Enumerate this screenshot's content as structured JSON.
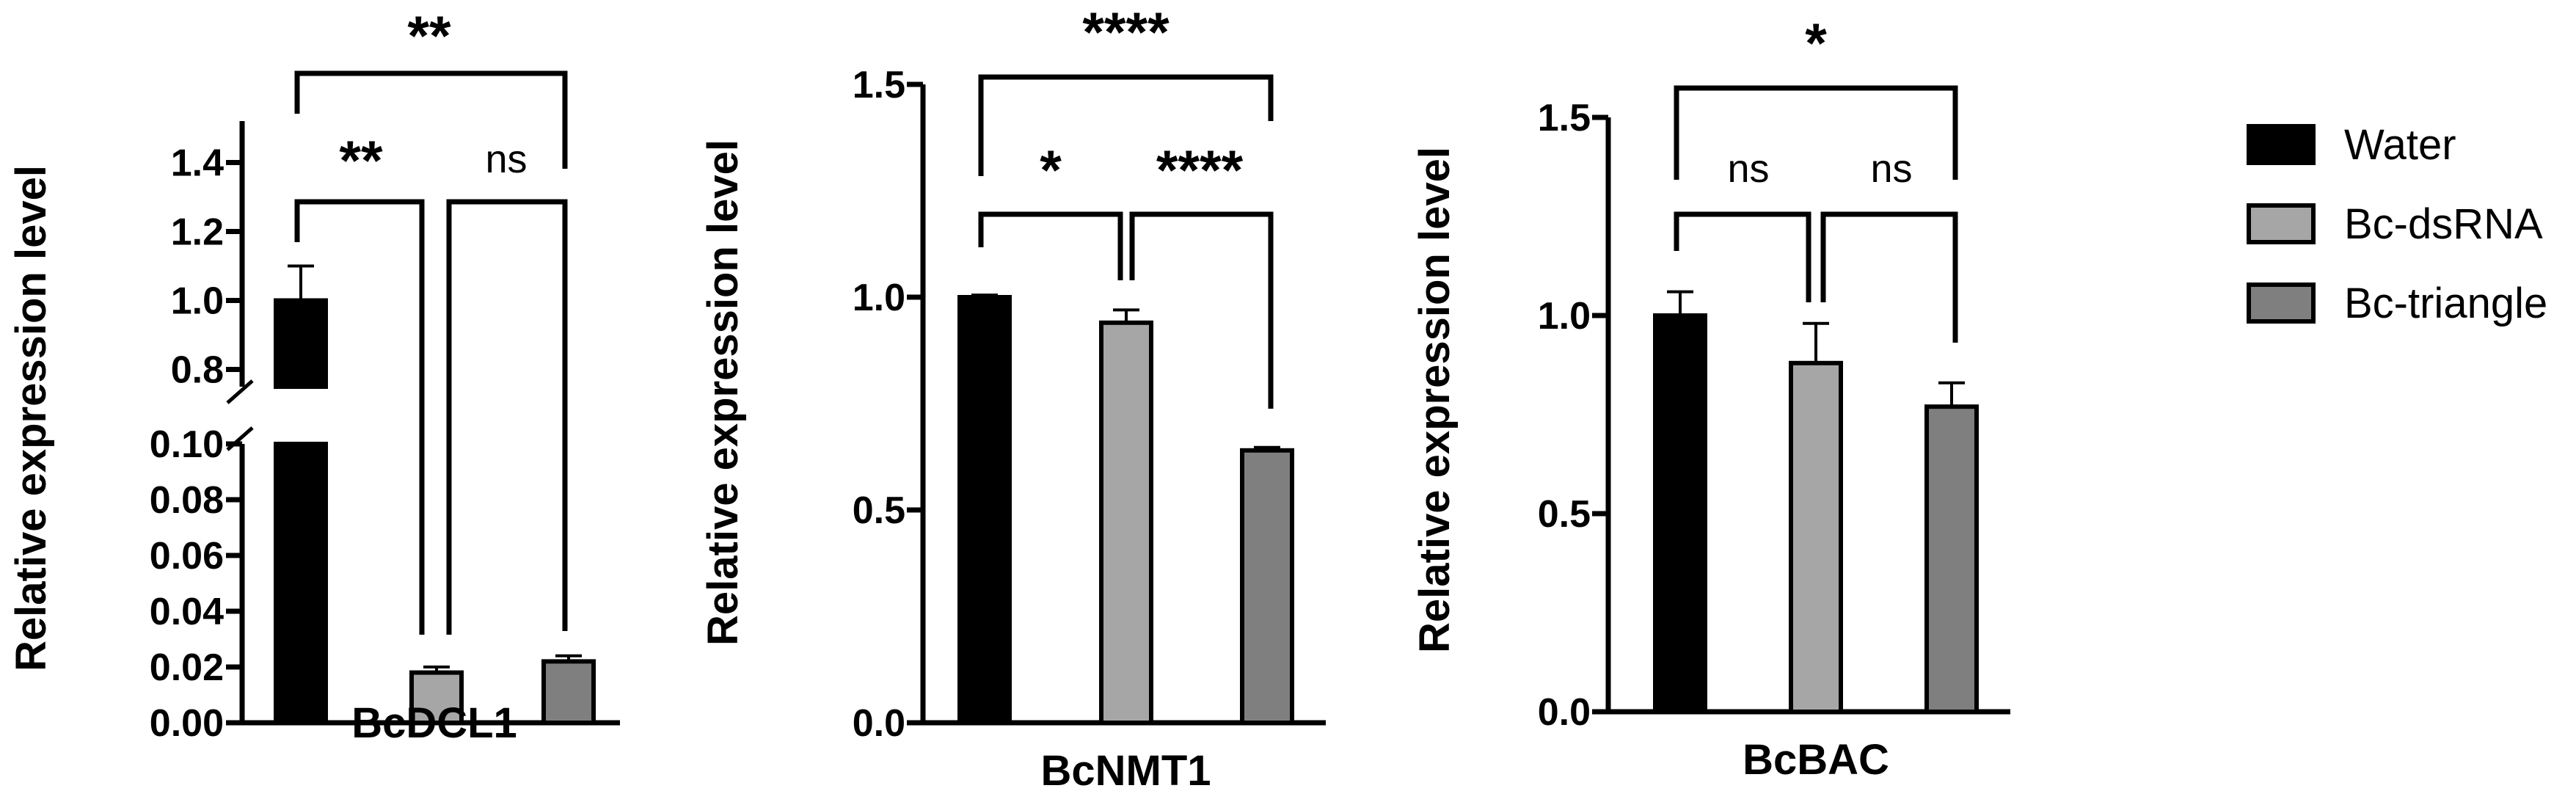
{
  "legend": [
    "Water",
    "Bc-dsRNA",
    "Bc-triangle"
  ],
  "colors": {
    "Water": "#000000",
    "Bc-dsRNA": "#a6a6a6",
    "Bc-triangle": "#7f7f7f"
  },
  "chart_data": [
    {
      "type": "bar",
      "xlabel": "BcDCL1",
      "ylabel": "Relative expression level",
      "categories": [
        "Water",
        "Bc-dsRNA",
        "Bc-triangle"
      ],
      "values": [
        1.0,
        0.018,
        0.022
      ],
      "errors": [
        0.1,
        0.002,
        0.002
      ],
      "axis_break": {
        "lower_range": [
          0.0,
          0.1
        ],
        "upper_range": [
          0.75,
          1.5
        ]
      },
      "yticks_lower": [
        "0.00",
        "0.02",
        "0.04",
        "0.06",
        "0.08",
        "0.10"
      ],
      "yticks_upper": [
        "0.8",
        "1.0",
        "1.2",
        "1.4"
      ],
      "significance": [
        {
          "pair": [
            "Water",
            "Bc-triangle"
          ],
          "label": "**"
        },
        {
          "pair": [
            "Water",
            "Bc-dsRNA"
          ],
          "label": "**"
        },
        {
          "pair": [
            "Bc-dsRNA",
            "Bc-triangle"
          ],
          "label": "ns"
        }
      ]
    },
    {
      "type": "bar",
      "xlabel": "BcNMT1",
      "ylabel": "Relative expression level",
      "categories": [
        "Water",
        "Bc-dsRNA",
        "Bc-triangle"
      ],
      "values": [
        1.0,
        0.94,
        0.64
      ],
      "errors": [
        0.005,
        0.03,
        0.007
      ],
      "ylim": [
        0.0,
        1.5
      ],
      "yticks": [
        "0.0",
        "0.5",
        "1.0",
        "1.5"
      ],
      "significance": [
        {
          "pair": [
            "Water",
            "Bc-triangle"
          ],
          "label": "****"
        },
        {
          "pair": [
            "Water",
            "Bc-dsRNA"
          ],
          "label": "*"
        },
        {
          "pair": [
            "Bc-dsRNA",
            "Bc-triangle"
          ],
          "label": "****"
        }
      ]
    },
    {
      "type": "bar",
      "xlabel": "BcBAC",
      "ylabel": "Relative expression level",
      "categories": [
        "Water",
        "Bc-dsRNA",
        "Bc-triangle"
      ],
      "values": [
        1.0,
        0.88,
        0.77
      ],
      "errors": [
        0.06,
        0.1,
        0.06
      ],
      "ylim": [
        0.0,
        1.5
      ],
      "yticks": [
        "0.0",
        "0.5",
        "1.0",
        "1.5"
      ],
      "significance": [
        {
          "pair": [
            "Water",
            "Bc-triangle"
          ],
          "label": "*"
        },
        {
          "pair": [
            "Water",
            "Bc-dsRNA"
          ],
          "label": "ns"
        },
        {
          "pair": [
            "Bc-dsRNA",
            "Bc-triangle"
          ],
          "label": "ns"
        }
      ]
    }
  ]
}
